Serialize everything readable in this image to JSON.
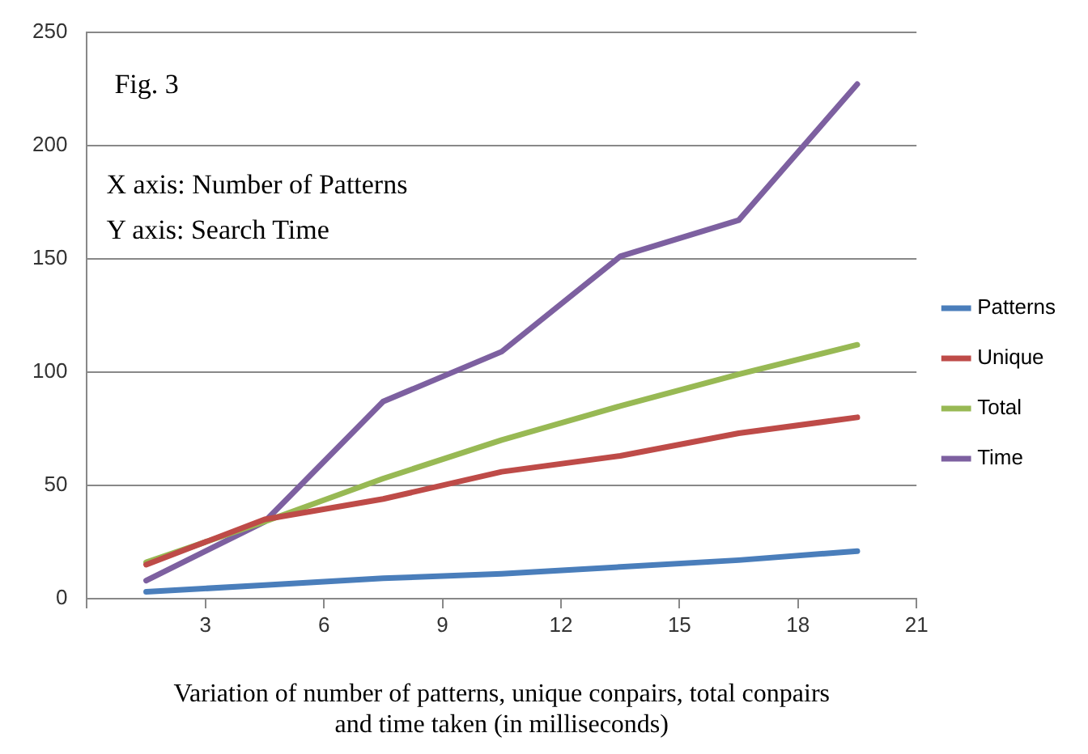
{
  "chart_data": {
    "type": "line",
    "xlabel": "Variation of number of patterns, unique conpairs, total conpairs\nand time taken (in milliseconds)",
    "annotations": [
      "Fig. 3",
      "X axis: Number of Patterns",
      "Y axis: Search Time"
    ],
    "x": [
      1.5,
      4.5,
      7.5,
      10.5,
      13.5,
      16.5,
      19.5
    ],
    "series": [
      {
        "name": "Patterns",
        "color": "#4a7ebb",
        "values": [
          3,
          6,
          9,
          11,
          14,
          17,
          21
        ]
      },
      {
        "name": "Unique",
        "color": "#be4b48",
        "values": [
          15,
          35,
          44,
          56,
          63,
          73,
          80
        ]
      },
      {
        "name": "Total",
        "color": "#98b954",
        "values": [
          16,
          34,
          53,
          70,
          85,
          99,
          112
        ]
      },
      {
        "name": "Time",
        "color": "#7d60a0",
        "values": [
          8,
          34,
          87,
          109,
          151,
          167,
          227
        ]
      }
    ],
    "xlim": [
      0,
      21
    ],
    "xticks": [
      {
        "value": 0,
        "label": null
      },
      3,
      6,
      9,
      12,
      15,
      18,
      21
    ],
    "ylim": [
      0,
      250
    ],
    "yticks": [
      0,
      50,
      100,
      150,
      200,
      250
    ],
    "grid": "y",
    "legend": "right",
    "marker": "none",
    "line_style": "solid"
  }
}
